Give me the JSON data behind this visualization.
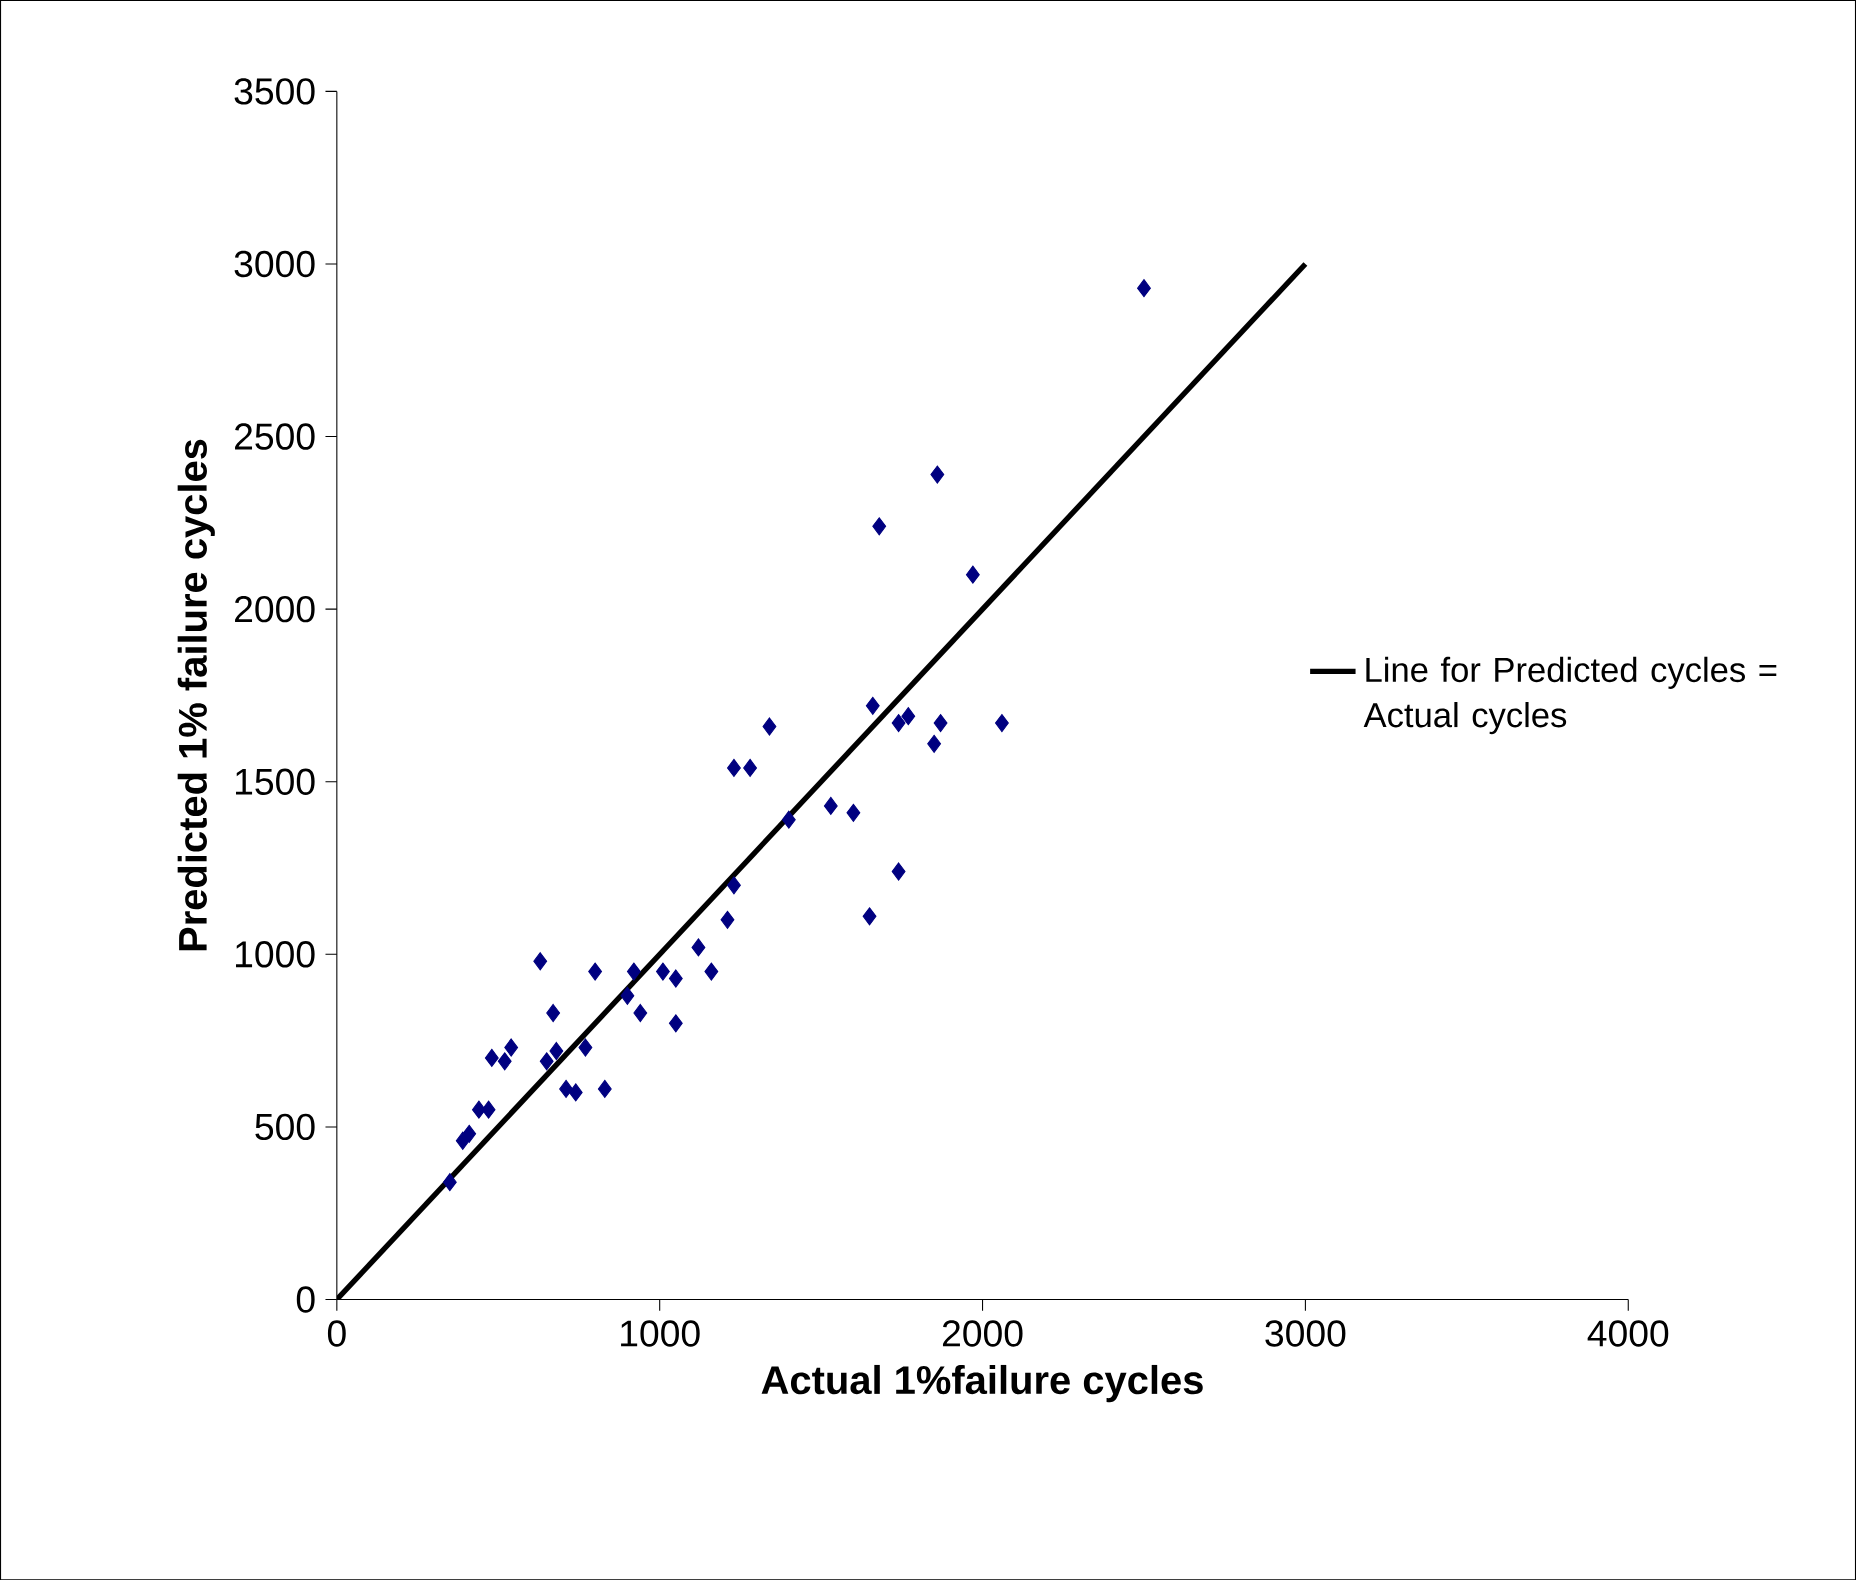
{
  "chart_data": {
    "type": "scatter",
    "xlabel": "Actual 1%failure cycles",
    "ylabel": "Predicted 1% failure cycles",
    "xlim": [
      0,
      4000
    ],
    "ylim": [
      0,
      3500
    ],
    "xticks": [
      0,
      1000,
      2000,
      3000,
      4000
    ],
    "yticks": [
      0,
      500,
      1000,
      1500,
      2000,
      2500,
      3000,
      3500
    ],
    "grid": false,
    "legend": "right",
    "series": [
      {
        "color": "#000080",
        "marker": "diamond",
        "x": [
          350,
          390,
          410,
          440,
          470,
          480,
          520,
          540,
          630,
          670,
          650,
          680,
          710,
          740,
          770,
          830,
          800,
          900,
          920,
          940,
          1010,
          1050,
          1050,
          1120,
          1160,
          1210,
          1230,
          1230,
          1280,
          1340,
          1400,
          1530,
          1600,
          1650,
          1740,
          1860,
          1680,
          1970,
          1660,
          1740,
          1770,
          1870,
          2060,
          1850,
          2500
        ],
        "values": [
          340,
          460,
          480,
          550,
          550,
          700,
          690,
          730,
          980,
          830,
          690,
          720,
          610,
          600,
          730,
          610,
          950,
          880,
          950,
          830,
          950,
          930,
          800,
          1020,
          950,
          1100,
          1200,
          1540,
          1540,
          1660,
          1390,
          1430,
          1410,
          1110,
          1240,
          2390,
          2240,
          2100,
          1720,
          1670,
          1690,
          1670,
          1670,
          1610,
          2930
        ]
      },
      {
        "type": "line",
        "name": "Line for Predicted cycles = Actual cycles",
        "color": "#000000",
        "marker": "none",
        "line_style": "solid",
        "x": [
          0,
          3000
        ],
        "values": [
          0,
          3000
        ]
      }
    ]
  }
}
